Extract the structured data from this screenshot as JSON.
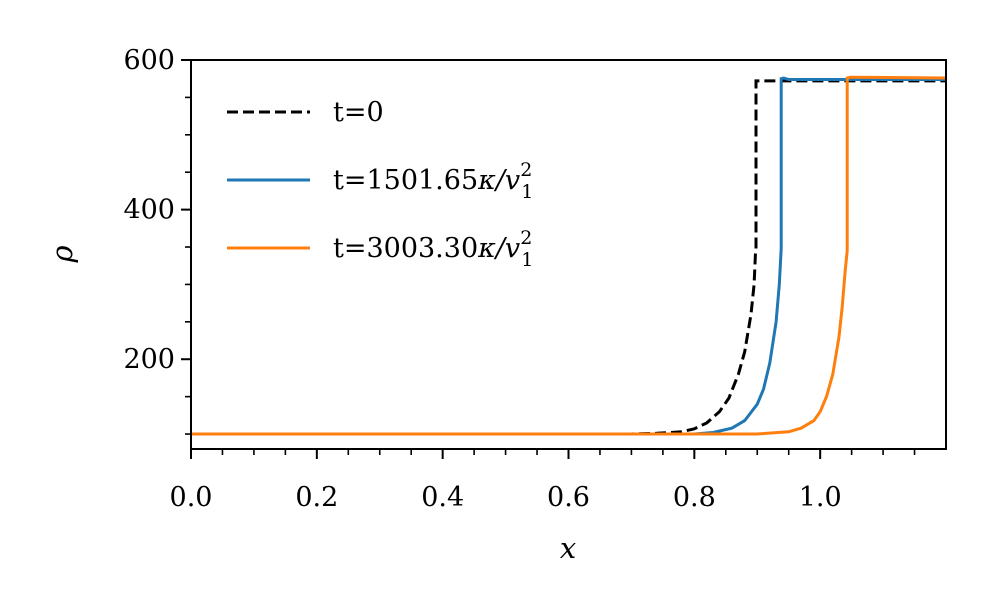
{
  "chart_data": {
    "type": "line",
    "xlabel": "x",
    "ylabel": "ρ",
    "xlim": [
      0.0,
      1.2
    ],
    "ylim": [
      80,
      600
    ],
    "xticks": [
      0.0,
      0.2,
      0.4,
      0.6,
      0.8,
      1.0
    ],
    "xtick_labels": [
      "0.0",
      "0.2",
      "0.4",
      "0.6",
      "0.8",
      "1.0"
    ],
    "yticks": [
      200,
      400,
      600
    ],
    "ytick_labels": [
      "200",
      "400",
      "600"
    ],
    "grid": false,
    "legend_position": "top-left",
    "series": [
      {
        "name": "t=0",
        "legend": {
          "prefix": "t=0",
          "unit": "",
          "sup": "",
          "sub": ""
        },
        "color": "#000000",
        "dashed": true,
        "x": [
          0.0,
          0.7,
          0.74,
          0.78,
          0.8,
          0.82,
          0.84,
          0.855,
          0.87,
          0.88,
          0.89,
          0.895,
          0.897,
          0.898,
          0.898,
          1.2
        ],
        "y": [
          100,
          100,
          101,
          103,
          107,
          115,
          130,
          148,
          180,
          210,
          260,
          300,
          340,
          345,
          572,
          572
        ]
      },
      {
        "name": "t=1501.65κ/v₁²",
        "legend": {
          "prefix": "t=1501.65",
          "unit": "κ/v",
          "sup": "2",
          "sub": "1"
        },
        "color": "#1f77b4",
        "dashed": false,
        "x": [
          0.0,
          0.8,
          0.83,
          0.86,
          0.88,
          0.9,
          0.91,
          0.92,
          0.93,
          0.935,
          0.938,
          0.938,
          0.942,
          0.95,
          1.2
        ],
        "y": [
          100,
          100,
          102,
          108,
          118,
          140,
          160,
          195,
          250,
          300,
          348,
          575,
          576,
          574,
          574
        ]
      },
      {
        "name": "t=3003.30κ/v₁²",
        "legend": {
          "prefix": "t=3003.30",
          "unit": "κ/v",
          "sup": "2",
          "sub": "1"
        },
        "color": "#ff7f0e",
        "dashed": false,
        "x": [
          0.0,
          0.9,
          0.95,
          0.97,
          0.99,
          1.0,
          1.01,
          1.02,
          1.03,
          1.035,
          1.04,
          1.043,
          1.043,
          1.048,
          1.2
        ],
        "y": [
          100,
          100,
          103,
          108,
          118,
          130,
          150,
          180,
          230,
          270,
          320,
          345,
          576,
          577,
          576
        ]
      }
    ]
  }
}
